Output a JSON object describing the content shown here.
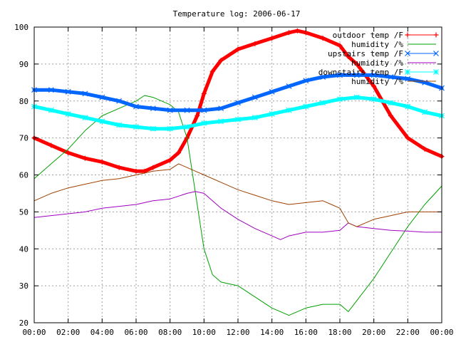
{
  "chart_data": {
    "type": "line",
    "title": "Temperature log: 2006-06-17",
    "xlabel": "",
    "ylabel": "",
    "xlim": [
      0,
      24
    ],
    "ylim": [
      20,
      100
    ],
    "grid": true,
    "legend_position": "top-right",
    "x_ticks": [
      {
        "value": 0,
        "label": "00:00"
      },
      {
        "value": 2,
        "label": "02:00"
      },
      {
        "value": 4,
        "label": "04:00"
      },
      {
        "value": 6,
        "label": "06:00"
      },
      {
        "value": 8,
        "label": "08:00"
      },
      {
        "value": 10,
        "label": "10:00"
      },
      {
        "value": 12,
        "label": "12:00"
      },
      {
        "value": 14,
        "label": "14:00"
      },
      {
        "value": 16,
        "label": "16:00"
      },
      {
        "value": 18,
        "label": "18:00"
      },
      {
        "value": 20,
        "label": "20:00"
      },
      {
        "value": 22,
        "label": "22:00"
      },
      {
        "value": 24,
        "label": "00:00"
      }
    ],
    "y_ticks": [
      {
        "value": 20,
        "label": "20"
      },
      {
        "value": 30,
        "label": "30"
      },
      {
        "value": 40,
        "label": "40"
      },
      {
        "value": 50,
        "label": "50"
      },
      {
        "value": 60,
        "label": "60"
      },
      {
        "value": 70,
        "label": "70"
      },
      {
        "value": 80,
        "label": "80"
      },
      {
        "value": 90,
        "label": "90"
      },
      {
        "value": 100,
        "label": "100"
      }
    ],
    "series": [
      {
        "name": "outdoor temp /F",
        "color": "#ff0000",
        "marker": "plus",
        "x": [
          0,
          1,
          2,
          3,
          4,
          5,
          6,
          6.5,
          7,
          8,
          8.5,
          9,
          9.3,
          9.6,
          10,
          10.5,
          11,
          12,
          13,
          14,
          15,
          15.5,
          16,
          17,
          18,
          18.5,
          19,
          20,
          21,
          22,
          23,
          24
        ],
        "y": [
          70,
          68,
          66,
          64.5,
          63.5,
          62,
          61,
          61,
          62,
          64,
          66,
          70,
          73,
          76,
          82,
          88,
          91,
          94,
          95.5,
          97,
          98.5,
          99,
          98.5,
          97,
          95,
          92,
          90,
          84,
          76,
          70,
          67,
          65
        ]
      },
      {
        "name": "humidity /%",
        "color": "#00a000",
        "marker": "none",
        "x": [
          0,
          1,
          2,
          3,
          4,
          5,
          6,
          6.5,
          7,
          8,
          8.5,
          9,
          9.5,
          10,
          10.5,
          11,
          12,
          13,
          14,
          15,
          16,
          17,
          18,
          18.5,
          19,
          20,
          21,
          22,
          23,
          24
        ],
        "y": [
          59,
          63,
          67,
          72,
          76,
          78,
          80,
          81.5,
          81,
          79,
          77,
          70,
          55,
          40,
          33,
          31,
          30,
          27,
          24,
          22,
          24,
          25,
          25,
          23,
          26,
          32,
          39,
          46,
          52,
          57
        ]
      },
      {
        "name": "upstairs temp /F",
        "color": "#0066ff",
        "marker": "x",
        "x": [
          0,
          1,
          2,
          3,
          4,
          5,
          6,
          7,
          8,
          9,
          10,
          11,
          12,
          13,
          14,
          15,
          16,
          17,
          18,
          19,
          20,
          21,
          22,
          23,
          24
        ],
        "y": [
          83,
          83,
          82.5,
          82,
          81,
          80,
          78.5,
          78,
          77.5,
          77.5,
          77.5,
          78,
          79.5,
          81,
          82.5,
          84,
          85.5,
          86.5,
          87,
          87,
          87,
          86.5,
          86,
          85,
          83.5
        ]
      },
      {
        "name": "humidity /%",
        "color": "#a000c0",
        "marker": "none",
        "x": [
          0,
          1,
          2,
          3,
          4,
          5,
          6,
          7,
          8,
          9,
          9.5,
          10,
          11,
          12,
          13,
          14,
          14.5,
          15,
          16,
          17,
          18,
          18.5,
          19,
          20,
          21,
          22,
          23,
          24
        ],
        "y": [
          48.5,
          49,
          49.5,
          50,
          51,
          51.5,
          52,
          53,
          53.5,
          55,
          55.5,
          55,
          51,
          48,
          45.5,
          43.5,
          42.5,
          43.5,
          44.5,
          44.5,
          45,
          47,
          46,
          45.5,
          45,
          44.8,
          44.5,
          44.5
        ]
      },
      {
        "name": "downstairs temp /F",
        "color": "#00ffff",
        "marker": "star",
        "x": [
          0,
          1,
          2,
          3,
          4,
          5,
          6,
          7,
          8,
          9,
          10,
          11,
          12,
          13,
          14,
          15,
          16,
          17,
          18,
          19,
          20,
          21,
          22,
          23,
          24
        ],
        "y": [
          78.5,
          77.5,
          76.5,
          75.5,
          74.5,
          73.5,
          73,
          72.5,
          72.5,
          73,
          74,
          74.5,
          75,
          75.5,
          76.5,
          77.5,
          78.5,
          79.5,
          80.5,
          81,
          80.5,
          79.5,
          78.5,
          77,
          76
        ]
      },
      {
        "name": "humidity /%",
        "color": "#a04000",
        "marker": "none",
        "x": [
          0,
          1,
          2,
          3,
          4,
          5,
          6,
          7,
          8,
          8.5,
          9,
          9.5,
          10,
          11,
          12,
          13,
          14,
          15,
          16,
          17,
          17.5,
          18,
          18.5,
          19,
          19.5,
          20,
          21,
          22,
          23,
          24
        ],
        "y": [
          53,
          55,
          56.5,
          57.5,
          58.5,
          59,
          60,
          61,
          61.5,
          63,
          62,
          61,
          60,
          58,
          56,
          54.5,
          53,
          52,
          52.5,
          53,
          52,
          51,
          47,
          46,
          47,
          48,
          49,
          50,
          50,
          50
        ]
      }
    ]
  }
}
